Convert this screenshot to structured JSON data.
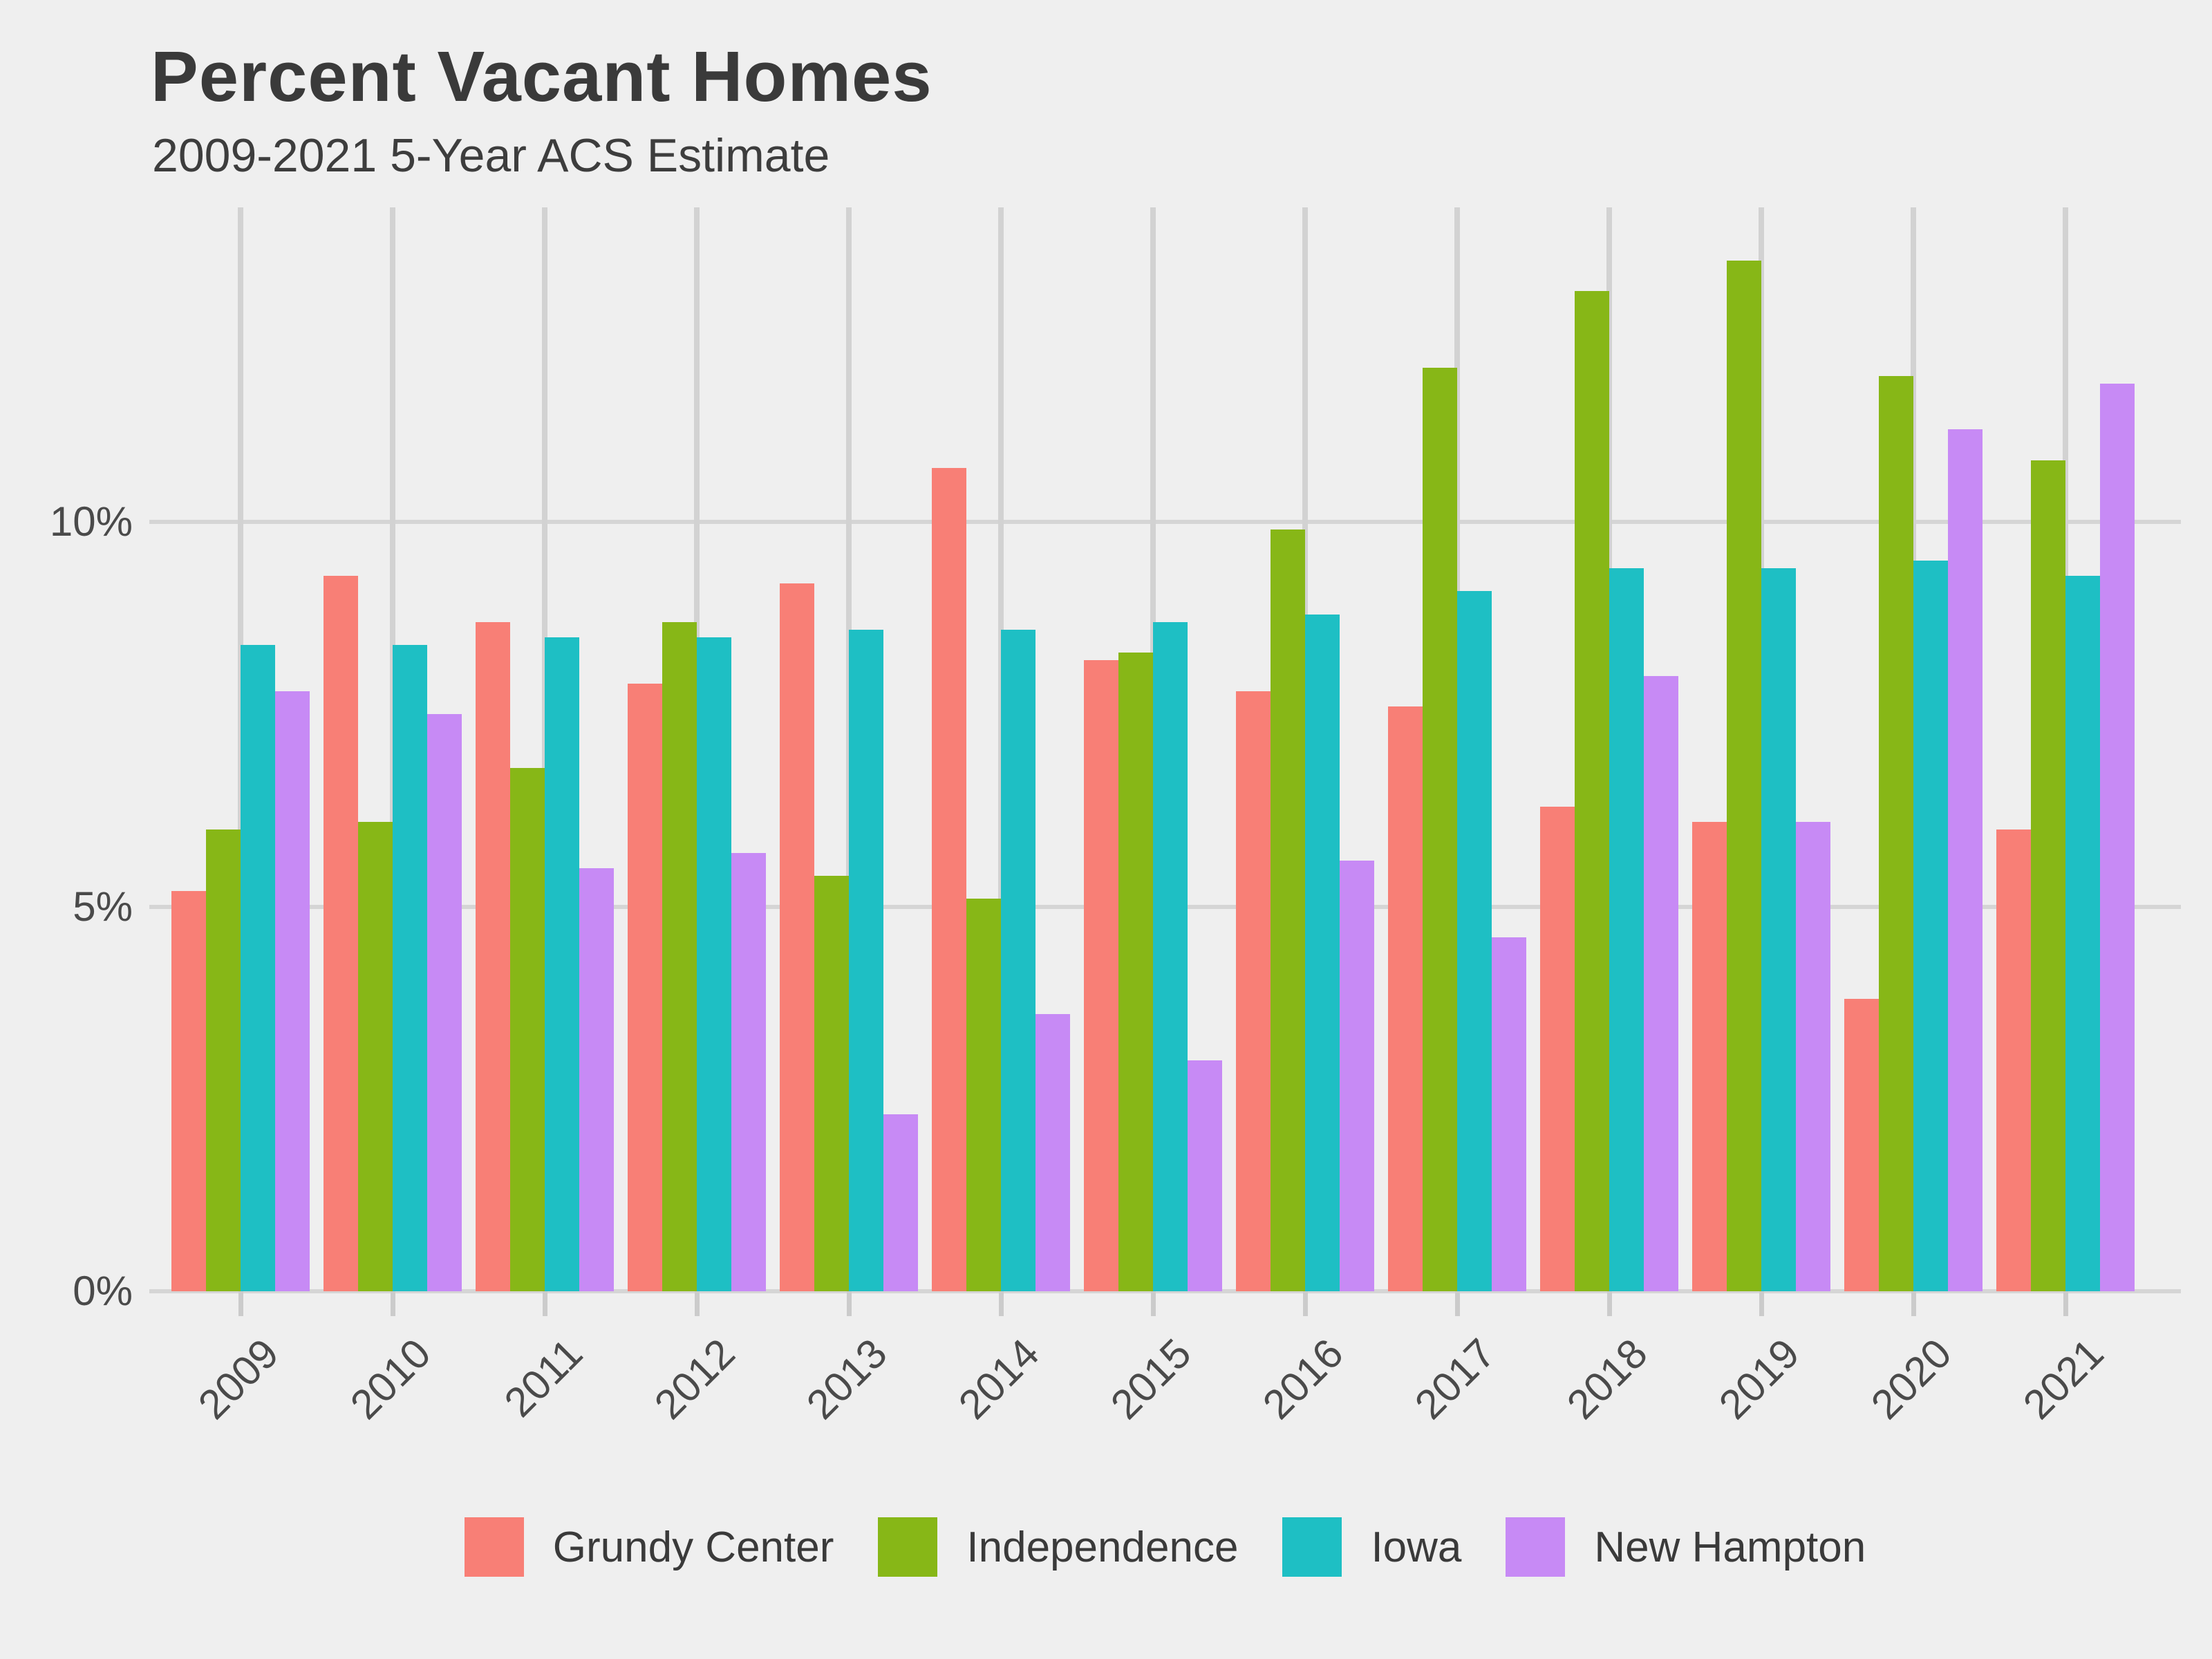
{
  "chart_data": {
    "type": "bar",
    "title": "Percent Vacant Homes",
    "subtitle": "2009-2021 5-Year ACS Estimate",
    "categories": [
      "2009",
      "2010",
      "2011",
      "2012",
      "2013",
      "2014",
      "2015",
      "2016",
      "2017",
      "2018",
      "2019",
      "2020",
      "2021"
    ],
    "series": [
      {
        "name": "Grundy Center",
        "color": "#F87F76",
        "values": [
          5.2,
          9.3,
          8.7,
          7.9,
          9.2,
          10.7,
          8.2,
          7.8,
          7.6,
          6.3,
          6.1,
          3.8,
          6.0
        ]
      },
      {
        "name": "Independence",
        "color": "#87B717",
        "values": [
          6.0,
          6.1,
          6.8,
          8.7,
          5.4,
          5.1,
          8.3,
          9.9,
          12.0,
          13.0,
          13.4,
          11.9,
          10.8
        ]
      },
      {
        "name": "Iowa",
        "color": "#1EBFC4",
        "values": [
          8.4,
          8.4,
          8.5,
          8.5,
          8.6,
          8.6,
          8.7,
          8.8,
          9.1,
          9.4,
          9.4,
          9.5,
          9.3
        ]
      },
      {
        "name": "New Hampton",
        "color": "#C78AF5",
        "values": [
          7.8,
          7.5,
          5.5,
          5.7,
          2.3,
          3.6,
          3.0,
          5.6,
          4.6,
          8.0,
          6.1,
          11.2,
          11.8
        ]
      }
    ],
    "xlabel": "",
    "ylabel": "",
    "y_ticks": [
      {
        "value": 0,
        "label": "0%"
      },
      {
        "value": 5,
        "label": "5%"
      },
      {
        "value": 10,
        "label": "10%"
      }
    ],
    "ylim": [
      0,
      14.1
    ],
    "grid": "major-x-and-y",
    "legend_position": "bottom-center",
    "background_color": "#EFEFEF",
    "gridline_color": "#D5D5D5",
    "title_color": "#3A3A3A",
    "axis_text_color": "#4A4A4A"
  }
}
